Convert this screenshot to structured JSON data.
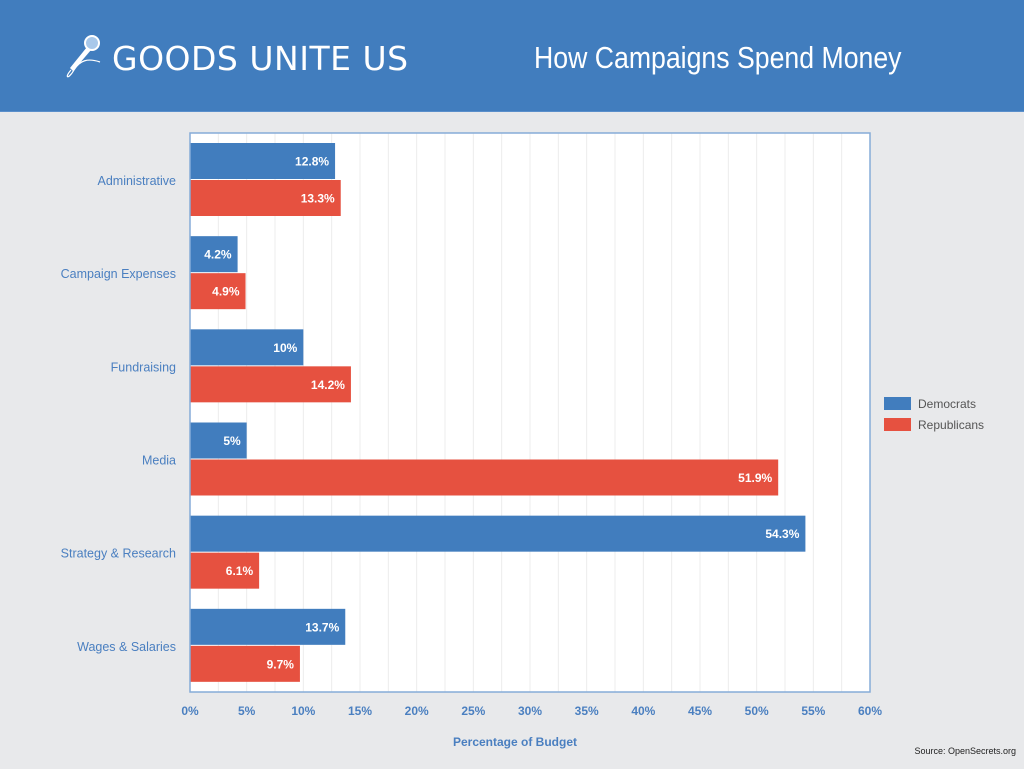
{
  "header": {
    "brand": "GOODS UNITE US",
    "brand_icon": "microphone-icon",
    "title": "How Campaigns Spend Money"
  },
  "source": "Source: OpenSecrets.org",
  "colors": {
    "header_bg": "#417dbe",
    "democrats": "#417dbe",
    "republicans": "#e65140",
    "axis_text": "#4a7fc0"
  },
  "chart_data": {
    "type": "bar",
    "orientation": "horizontal",
    "title": "How Campaigns Spend Money",
    "xlabel": "Percentage of Budget",
    "ylabel": "",
    "xlim": [
      0,
      60
    ],
    "xticks": [
      "0%",
      "5%",
      "10%",
      "15%",
      "20%",
      "25%",
      "30%",
      "35%",
      "40%",
      "45%",
      "50%",
      "55%",
      "60%"
    ],
    "tick_step": 5,
    "grid": true,
    "legend_position": "right",
    "categories": [
      "Administrative",
      "Campaign Expenses",
      "Fundraising",
      "Media",
      "Strategy & Research",
      "Wages & Salaries"
    ],
    "series": [
      {
        "name": "Democrats",
        "values": [
          12.8,
          4.2,
          10,
          5,
          54.3,
          13.7
        ],
        "labels": [
          "12.8%",
          "4.2%",
          "10%",
          "5%",
          "54.3%",
          "13.7%"
        ]
      },
      {
        "name": "Republicans",
        "values": [
          13.3,
          4.9,
          14.2,
          51.9,
          6.1,
          9.7
        ],
        "labels": [
          "13.3%",
          "4.9%",
          "14.2%",
          "51.9%",
          "6.1%",
          "9.7%"
        ]
      }
    ]
  }
}
